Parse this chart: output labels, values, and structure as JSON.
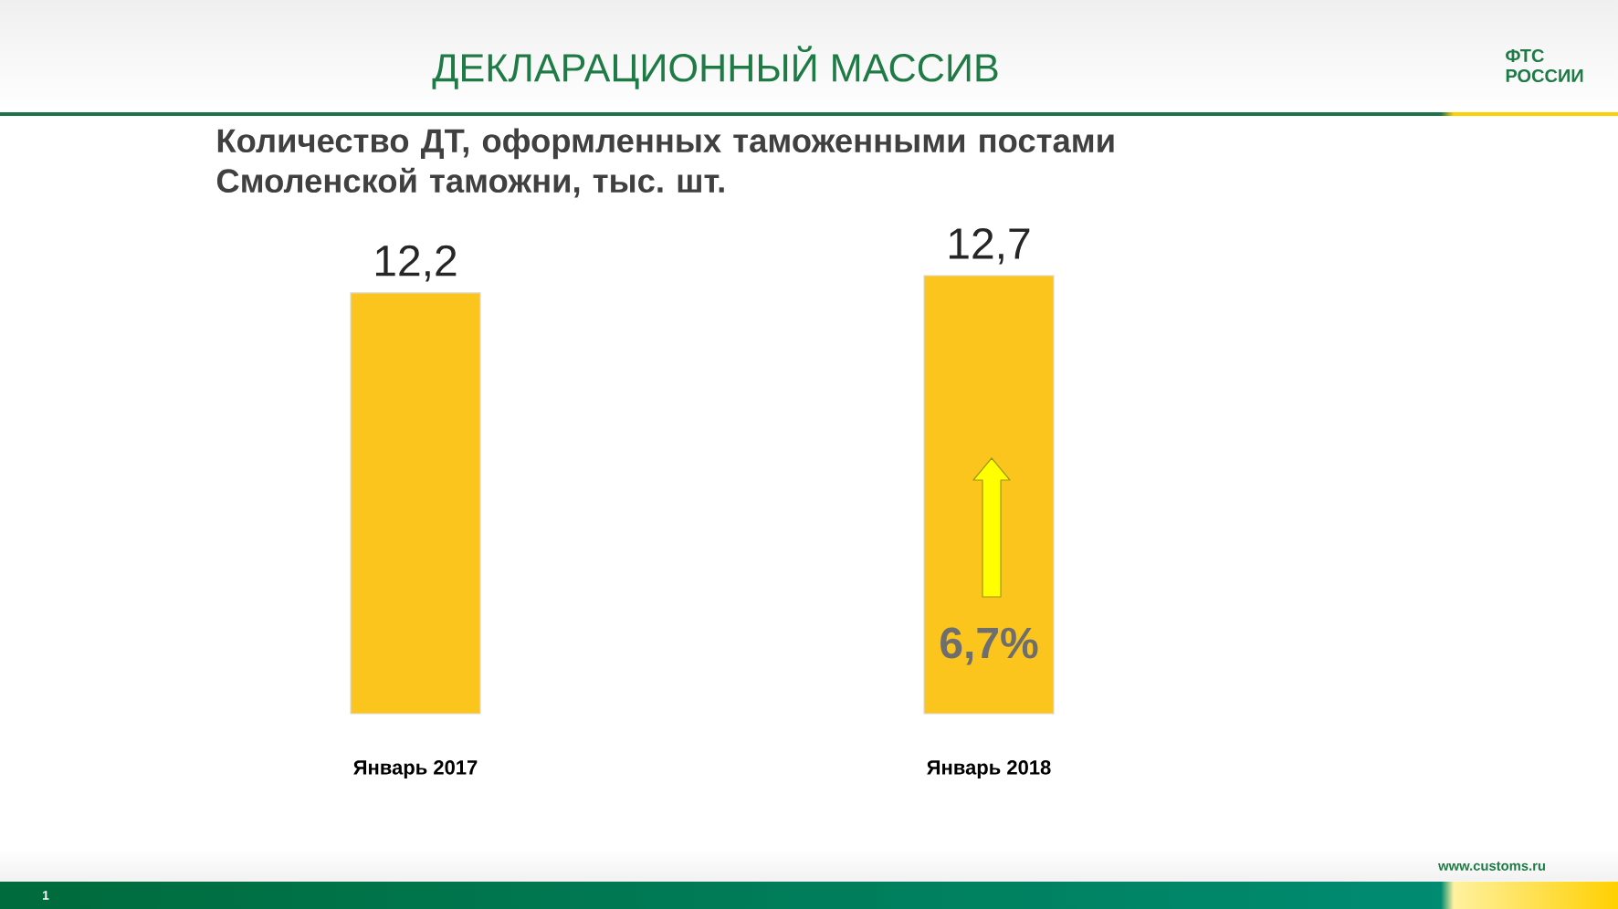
{
  "chart_data": {
    "type": "bar",
    "title": "ДЕКЛАРАЦИОННЫЙ МАССИВ",
    "subtitle": "Количество ДТ, оформленных таможенными постами Смоленской таможни, тыс. шт.",
    "categories": [
      "Январь 2017",
      "Январь 2018"
    ],
    "values": [
      12.2,
      12.7
    ],
    "value_labels": [
      "12,2",
      "12,7"
    ],
    "color": "#fcc51e",
    "annotations": [
      "6,7%",
      "ФТС РОССИИ",
      "www.customs.ru",
      "1"
    ]
  }
}
